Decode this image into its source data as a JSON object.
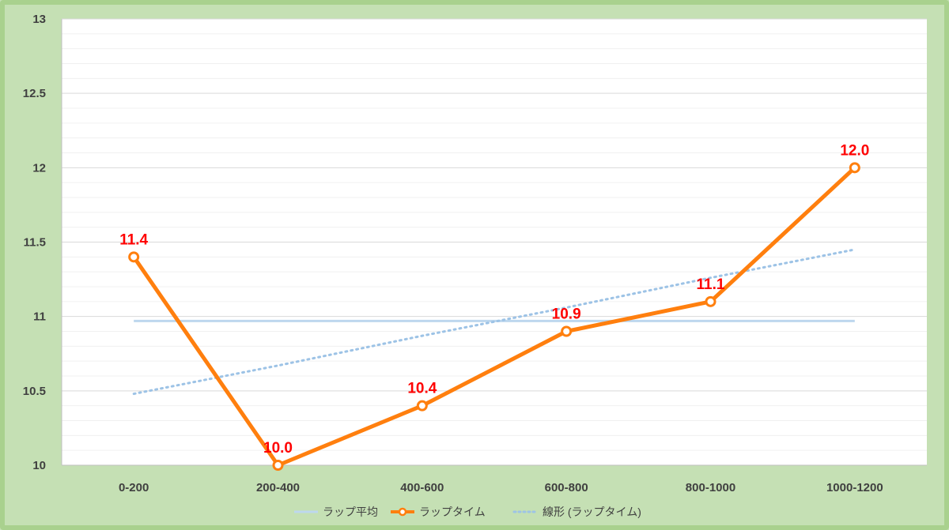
{
  "chart_data": {
    "type": "line",
    "categories": [
      "0-200",
      "200-400",
      "400-600",
      "600-800",
      "800-1000",
      "1000-1200"
    ],
    "ylim": [
      10,
      13
    ],
    "yticks": [
      "10",
      "10.5",
      "11",
      "11.5",
      "12",
      "12.5",
      "13"
    ],
    "grid": true,
    "legend_position": "bottom",
    "series": [
      {
        "name": "ラップ平均",
        "kind": "constant",
        "values": [
          10.97,
          10.97,
          10.97,
          10.97,
          10.97,
          10.97
        ],
        "color": "#bdd7ee"
      },
      {
        "name": "ラップタイム",
        "kind": "line-markers",
        "values": [
          11.4,
          10.0,
          10.4,
          10.9,
          11.1,
          12.0
        ],
        "labels": [
          "11.4",
          "10.0",
          "10.4",
          "10.9",
          "11.1",
          "12.0"
        ],
        "color": "#ff7f0e",
        "label_color": "#ff0000"
      },
      {
        "name": "線形 (ラップタイム)",
        "kind": "trendline",
        "values": [
          10.48,
          10.67,
          10.87,
          11.06,
          11.26,
          11.45
        ],
        "color": "#9dc3e6"
      }
    ]
  }
}
